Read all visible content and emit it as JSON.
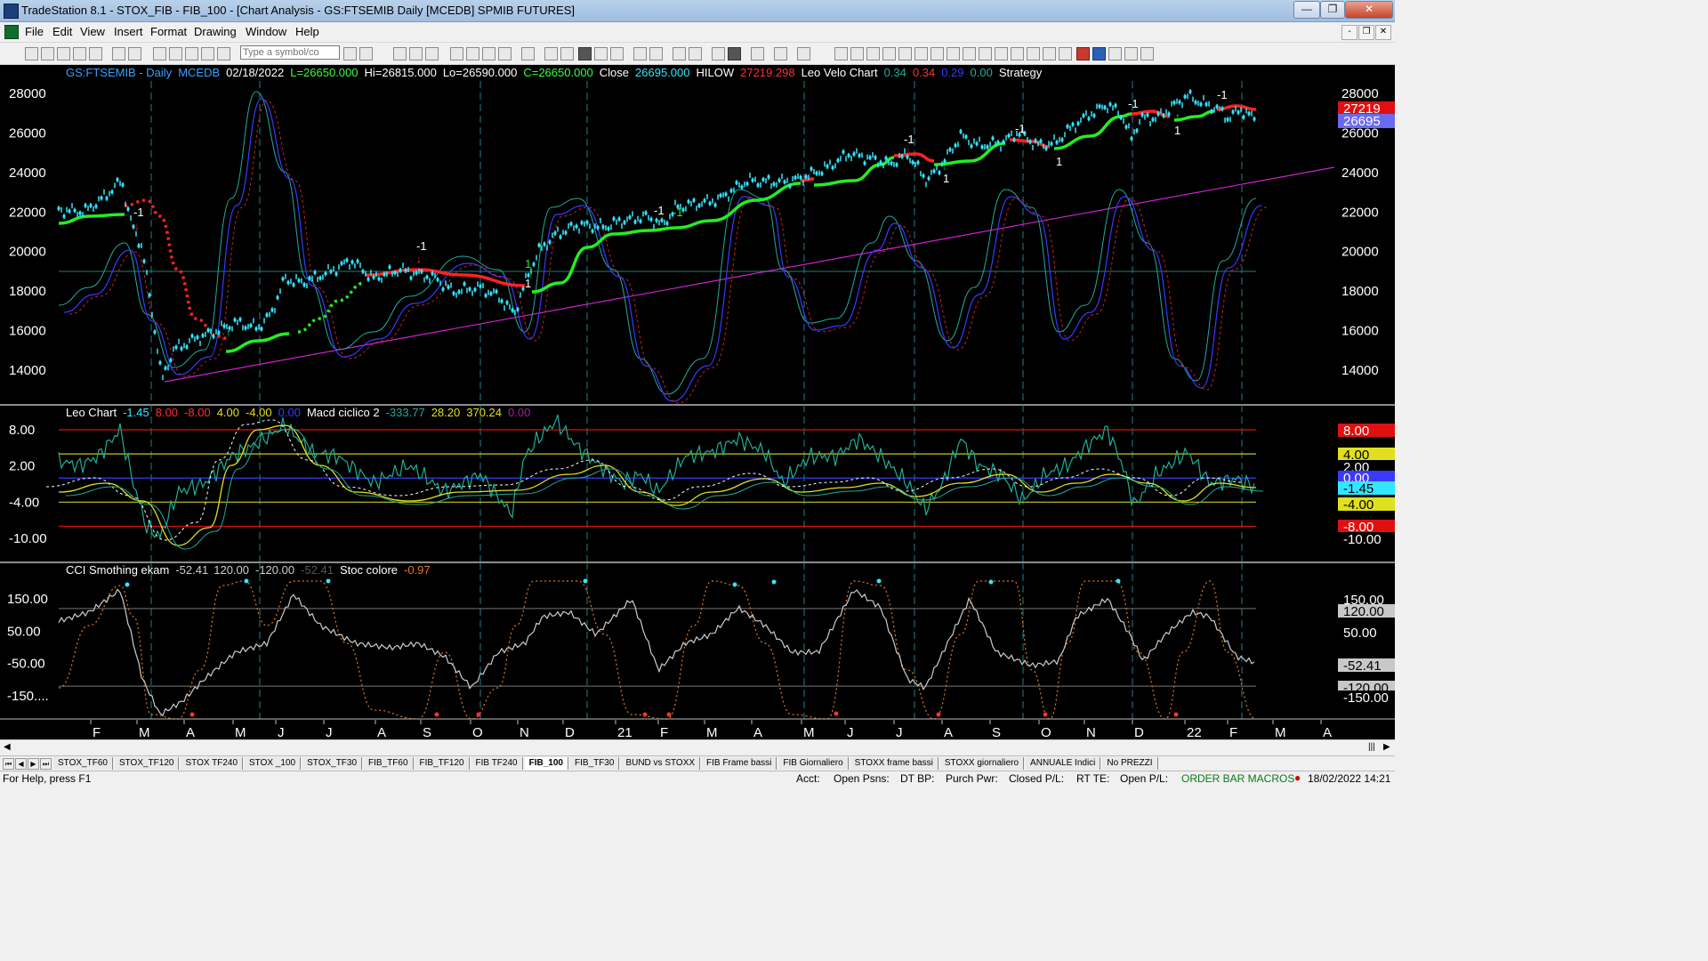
{
  "window": {
    "title": "TradeStation 8.1 - STOX_FIB - FIB_100 - [Chart Analysis - GS:FTSEMIB  Daily  [MCEDB] SPMIB FUTURES]",
    "buttons": {
      "minimize": "—",
      "maximize": "❐",
      "close": "✕"
    }
  },
  "menu": [
    "File",
    "Edit",
    "View",
    "Insert",
    "Format",
    "Drawing",
    "Window",
    "Help"
  ],
  "mdi_buttons": [
    "-",
    "❐",
    "✕"
  ],
  "toolbar": {
    "symbol_placeholder": "Type a symbol/co"
  },
  "price_panel": {
    "header": [
      {
        "text": "GS:FTSEMIB - Daily",
        "color": "#3aa0ff"
      },
      {
        "text": "MCEDB",
        "color": "#3aa0ff"
      },
      {
        "text": "02/18/2022",
        "color": "#ffffff"
      },
      {
        "text": "L=26650.000",
        "color": "#39ff39"
      },
      {
        "text": "Hi=26815.000",
        "color": "#ffffff"
      },
      {
        "text": "Lo=26590.000",
        "color": "#ffffff"
      },
      {
        "text": "C=26650.000",
        "color": "#39ff39"
      },
      {
        "text": "Close",
        "color": "#ffffff"
      },
      {
        "text": "26695.000",
        "color": "#33e6ff"
      },
      {
        "text": "HILOW",
        "color": "#ffffff"
      },
      {
        "text": "27219.298",
        "color": "#ff3030"
      },
      {
        "text": "Leo Velo Chart",
        "color": "#ffffff"
      },
      {
        "text": "0.34",
        "color": "#1fae9a"
      },
      {
        "text": "0.34",
        "color": "#ff3030"
      },
      {
        "text": "0.29",
        "color": "#3a3aff"
      },
      {
        "text": "0.00",
        "color": "#1fae9a"
      },
      {
        "text": "Strategy",
        "color": "#ffffff"
      }
    ],
    "y_axis": [
      28000,
      26000,
      24000,
      22000,
      20000,
      18000,
      16000,
      14000
    ],
    "y_labels": [
      "28000",
      "26000",
      "24000",
      "22000",
      "20000",
      "18000",
      "16000",
      "14000"
    ],
    "badges": [
      {
        "text": "27219",
        "color": "#e01010"
      },
      {
        "text": "26695",
        "color": "#6a6af0"
      }
    ],
    "signals": [
      "-1",
      "-1",
      "1",
      "-1",
      "-1",
      "1",
      "-1",
      "1",
      "-1",
      "1",
      "-1",
      "1",
      "-1"
    ]
  },
  "leo_panel": {
    "header": [
      {
        "text": "Leo Chart",
        "color": "#ffffff"
      },
      {
        "text": "-1.45",
        "color": "#33e6ff"
      },
      {
        "text": "8.00",
        "color": "#ff3030"
      },
      {
        "text": "-8.00",
        "color": "#ff3030"
      },
      {
        "text": "4.00",
        "color": "#e0e020"
      },
      {
        "text": "-4.00",
        "color": "#e0e020"
      },
      {
        "text": "0.00",
        "color": "#3a3aff"
      },
      {
        "text": "Macd ciclico 2",
        "color": "#ffffff"
      },
      {
        "text": "-333.77",
        "color": "#1fae9a"
      },
      {
        "text": "28.20",
        "color": "#e0e020"
      },
      {
        "text": "370.24",
        "color": "#e0e020"
      },
      {
        "text": "0.00",
        "color": "#a020a0"
      }
    ],
    "y_labels": [
      "8.00",
      "2.00",
      "-4.00",
      "-10.00"
    ],
    "badges": [
      {
        "text": "8.00",
        "bg": "#e01010",
        "fg": "#ffffff"
      },
      {
        "text": "4.00",
        "bg": "#e0e020",
        "fg": "#000000"
      },
      {
        "text": "2.00",
        "bg": "#000000",
        "fg": "#ffffff"
      },
      {
        "text": "0.00",
        "bg": "#3a3aff",
        "fg": "#ffffff"
      },
      {
        "text": "-1.45",
        "bg": "#33e6ff",
        "fg": "#000000"
      },
      {
        "text": "-4.00",
        "bg": "#e0e020",
        "fg": "#000000"
      },
      {
        "text": "-8.00",
        "bg": "#e01010",
        "fg": "#ffffff"
      },
      {
        "text": "-10.00",
        "bg": "#000000",
        "fg": "#ffffff"
      }
    ]
  },
  "cci_panel": {
    "header": [
      {
        "text": "CCI Smothing ekam",
        "color": "#ffffff"
      },
      {
        "text": "-52.41",
        "color": "#cccccc"
      },
      {
        "text": "120.00",
        "color": "#cccccc"
      },
      {
        "text": "-120.00",
        "color": "#cccccc"
      },
      {
        "text": "-52.41",
        "color": "#555555"
      },
      {
        "text": "Stoc colore",
        "color": "#ffffff"
      },
      {
        "text": "-0.97",
        "color": "#e07a20"
      }
    ],
    "y_labels": [
      "150.00",
      "50.00",
      "-50.00",
      "-150...."
    ],
    "badges": [
      {
        "text": "150.00",
        "bg": "#000000",
        "fg": "#ffffff"
      },
      {
        "text": "120.00",
        "bg": "#c8c8c8",
        "fg": "#000000"
      },
      {
        "text": "50.00",
        "bg": "#000000",
        "fg": "#ffffff"
      },
      {
        "text": "-52.41",
        "bg": "#c8c8c8",
        "fg": "#000000"
      },
      {
        "text": "-120.00",
        "bg": "#c8c8c8",
        "fg": "#000000"
      },
      {
        "text": "-150.00",
        "bg": "#000000",
        "fg": "#ffffff"
      }
    ]
  },
  "x_axis": [
    "F",
    "M",
    "A",
    "M",
    "J",
    "J",
    "A",
    "S",
    "O",
    "N",
    "D",
    "21",
    "F",
    "M",
    "A",
    "M",
    "J",
    "J",
    "A",
    "S",
    "O",
    "N",
    "D",
    "22",
    "F",
    "M",
    "A"
  ],
  "tabs": [
    "STOX_TF60",
    "STOX_TF120",
    "STOX TF240",
    "STOX _100",
    "STOX_TF30",
    "FIB_TF60",
    "FIB_TF120",
    "FIB TF240",
    "FIB_100",
    "FIB_TF30",
    "BUND vs STOXX",
    "FIB Frame bassi",
    "FIB Giornaliero",
    "STOXX frame bassi",
    "STOXX giornaliero",
    "ANNUALE Indici",
    "No PREZZI"
  ],
  "active_tab": "FIB_100",
  "status": {
    "help": "For Help, press F1",
    "acct": "Acct:",
    "open_psns": "Open Psns:",
    "dt_bp": "DT BP:",
    "purch_pwr": "Purch Pwr:",
    "closed_pl": "Closed P/L:",
    "rt_te": "RT TE:",
    "open_pl": "Open P/L:",
    "macros": "ORDER BAR  MACROS",
    "datetime": "18/02/2022 14:21"
  },
  "colors": {
    "price": "#33e6ff",
    "trend_up": "#22ee22",
    "trend_down": "#ff2222",
    "trendline": "#d020d0",
    "osc_teal": "#1fae9a",
    "osc_blue": "#3a3aff",
    "osc_red": "#d02020",
    "osc_yellow": "#e0e020",
    "cci_white": "#cccccc",
    "cci_orange": "#e07a20"
  }
}
